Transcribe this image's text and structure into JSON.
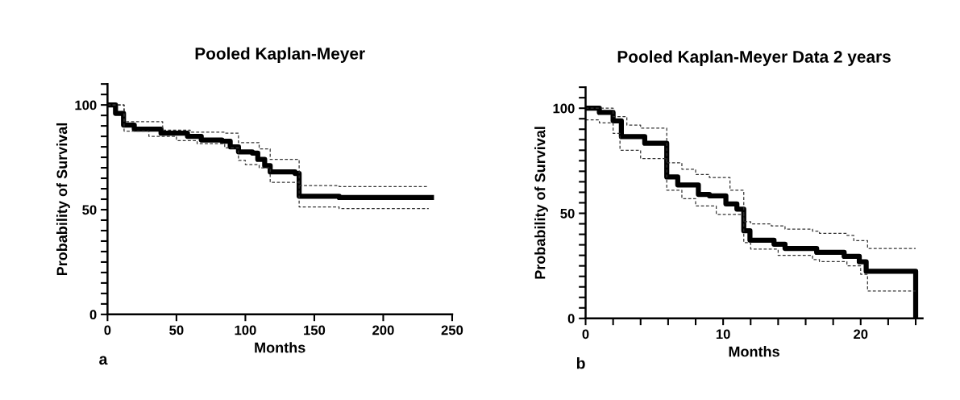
{
  "chart_data": [
    {
      "type": "step",
      "title": "Pooled Kaplan-Meyer",
      "xlabel": "Months",
      "ylabel": "Probability of Survival",
      "annotations": [
        "a"
      ],
      "xlim": [
        0,
        250
      ],
      "xticks": [
        0,
        50,
        100,
        150,
        200,
        250
      ],
      "ylim": [
        0,
        110
      ],
      "yticks": [
        0,
        {
          "value": 5,
          "label": null
        },
        {
          "value": 10,
          "label": null
        },
        {
          "value": 15,
          "label": null
        },
        {
          "value": 20,
          "label": null
        },
        {
          "value": 25,
          "label": null
        },
        {
          "value": 30,
          "label": null
        },
        {
          "value": 35,
          "label": null
        },
        {
          "value": 40,
          "label": null
        },
        {
          "value": 45,
          "label": null
        },
        50,
        {
          "value": 55,
          "label": null
        },
        {
          "value": 60,
          "label": null
        },
        {
          "value": 65,
          "label": null
        },
        {
          "value": 70,
          "label": null
        },
        {
          "value": 75,
          "label": null
        },
        {
          "value": 80,
          "label": null
        },
        {
          "value": 85,
          "label": null
        },
        {
          "value": 90,
          "label": null
        },
        {
          "value": 95,
          "label": null
        },
        100,
        {
          "value": 105,
          "label": null
        },
        {
          "value": 110,
          "label": null
        }
      ],
      "grid": false,
      "series": [
        {
          "color": "#000000",
          "line_style": "solid",
          "x": [
            0,
            5.8,
            11.6,
            19.4,
            38.8,
            58,
            68,
            83,
            89,
            95,
            105,
            109,
            114,
            118,
            136,
            139,
            167,
            168,
            235
          ],
          "values": [
            100,
            96,
            90.4,
            88.5,
            86.5,
            85,
            83.3,
            82.7,
            80,
            77.6,
            77,
            74,
            71,
            68,
            67.3,
            56.4,
            56.4,
            55.8,
            55.8
          ]
        },
        {
          "color": "#333333",
          "line_style": "dashed",
          "x": [
            0,
            12,
            40,
            60,
            85,
            95,
            110,
            118,
            139,
            165,
            168,
            233
          ],
          "values": [
            100,
            92,
            88,
            87,
            86.5,
            82,
            79,
            74,
            61.5,
            61.5,
            61,
            61
          ]
        },
        {
          "color": "#333333",
          "line_style": "dashed",
          "x": [
            0,
            12,
            30,
            50,
            65,
            85,
            95,
            100,
            110,
            118,
            139,
            168,
            233
          ],
          "values": [
            100,
            87.5,
            85,
            83,
            81.5,
            79.5,
            73.5,
            71.5,
            70,
            63,
            51.3,
            50.5,
            50.5
          ]
        }
      ]
    },
    {
      "type": "step",
      "title": "Pooled Kaplan-Meyer Data 2 years",
      "xlabel": "Months",
      "ylabel": "Probability of Survival",
      "annotations": [
        "b"
      ],
      "xlim": [
        0,
        24.5
      ],
      "xticks": [
        0,
        {
          "value": 2,
          "label": null
        },
        {
          "value": 4,
          "label": null
        },
        {
          "value": 6,
          "label": null
        },
        {
          "value": 8,
          "label": null
        },
        10,
        {
          "value": 12,
          "label": null
        },
        {
          "value": 14,
          "label": null
        },
        {
          "value": 16,
          "label": null
        },
        {
          "value": 18,
          "label": null
        },
        20,
        {
          "value": 22,
          "label": null
        },
        {
          "value": 24,
          "label": null
        }
      ],
      "ylim": [
        0,
        110
      ],
      "yticks": [
        0,
        {
          "value": 5,
          "label": null
        },
        {
          "value": 10,
          "label": null
        },
        {
          "value": 15,
          "label": null
        },
        {
          "value": 20,
          "label": null
        },
        {
          "value": 25,
          "label": null
        },
        {
          "value": 30,
          "label": null
        },
        {
          "value": 35,
          "label": null
        },
        {
          "value": 40,
          "label": null
        },
        {
          "value": 45,
          "label": null
        },
        50,
        {
          "value": 55,
          "label": null
        },
        {
          "value": 60,
          "label": null
        },
        {
          "value": 65,
          "label": null
        },
        {
          "value": 70,
          "label": null
        },
        {
          "value": 75,
          "label": null
        },
        {
          "value": 80,
          "label": null
        },
        {
          "value": 85,
          "label": null
        },
        {
          "value": 90,
          "label": null
        },
        {
          "value": 95,
          "label": null
        },
        100,
        {
          "value": 105,
          "label": null
        },
        {
          "value": 110,
          "label": null
        }
      ],
      "grid": false,
      "series": [
        {
          "color": "#000000",
          "line_style": "solid",
          "x": [
            0,
            1,
            2,
            2.6,
            4.3,
            5.9,
            5.9,
            6.7,
            8.2,
            9,
            10.2,
            11,
            11.5,
            11.5,
            11.95,
            13.7,
            14.5,
            16.4,
            16.8,
            18.8,
            19.9,
            20.4,
            24,
            24
          ],
          "values": [
            100,
            98,
            94,
            86.5,
            83.3,
            80.8,
            67.3,
            63.5,
            59,
            58.3,
            54.5,
            52,
            51.3,
            41.7,
            37.2,
            35.3,
            33.3,
            33.3,
            31.4,
            29.5,
            26.9,
            22.4,
            22.4,
            0
          ]
        },
        {
          "color": "#333333",
          "line_style": "dashed",
          "x": [
            0,
            2,
            3,
            4,
            5.9,
            5.9,
            7,
            8,
            9,
            10.5,
            11.5,
            11.5,
            12,
            13.5,
            14.5,
            16.5,
            17,
            19,
            19.5,
            20.5,
            24
          ],
          "values": [
            100,
            96,
            92,
            90.5,
            87.5,
            74,
            71,
            68.5,
            67,
            61,
            59.5,
            46,
            45,
            44,
            42.5,
            41.5,
            40.5,
            39.5,
            37,
            33.3,
            33.3
          ]
        },
        {
          "color": "#333333",
          "line_style": "dashed",
          "x": [
            0,
            1,
            2,
            2.5,
            4,
            5.9,
            5.9,
            7,
            8,
            9.5,
            11.5,
            11.5,
            12,
            14,
            16.5,
            17,
            19,
            20,
            20.5,
            24
          ],
          "values": [
            94.5,
            93,
            88,
            80,
            76,
            72,
            61,
            57,
            53.5,
            49.5,
            42,
            36,
            33,
            30,
            28,
            27,
            25,
            21,
            13,
            13
          ]
        }
      ]
    }
  ]
}
